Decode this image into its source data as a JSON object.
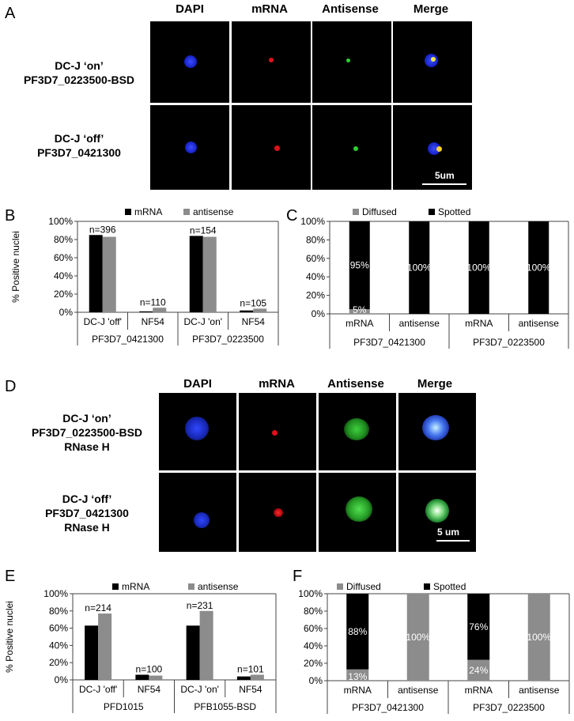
{
  "panels": {
    "A": {
      "letter": "A",
      "columns": [
        "DAPI",
        "mRNA",
        "Antisense",
        "Merge"
      ],
      "rows": [
        {
          "line1": "DC-J ‘on’",
          "line2": "PF3D7_0223500-BSD"
        },
        {
          "line1": "DC-J ‘off’",
          "line2": "PF3D7_0421300"
        }
      ],
      "scale": "5um"
    },
    "D": {
      "letter": "D",
      "columns": [
        "DAPI",
        "mRNA",
        "Antisense",
        "Merge"
      ],
      "rows": [
        {
          "line1": "DC-J ‘on’",
          "line2": "PF3D7_0223500-BSD",
          "line3": "RNase H"
        },
        {
          "line1": "DC-J ‘off’",
          "line2": "PF3D7_0421300",
          "line3": "RNase H"
        }
      ],
      "scale": "5 um"
    }
  },
  "chart_data": [
    {
      "panel": "B",
      "type": "bar",
      "ylabel": "% Positive nuclei",
      "ylim": [
        0,
        100
      ],
      "yticks": [
        "0%",
        "20%",
        "40%",
        "60%",
        "80%",
        "100%"
      ],
      "categories": [
        "DC-J 'off'",
        "NF54",
        "DC-J 'on'",
        "NF54"
      ],
      "groups": [
        "PF3D7_0421300",
        "PF3D7_0223500"
      ],
      "n_labels": [
        "n=396",
        "n=110",
        "n=154",
        "n=105"
      ],
      "series": [
        {
          "name": "mRNA",
          "color": "#000000",
          "values": [
            85,
            1,
            84,
            2
          ]
        },
        {
          "name": "antisense",
          "color": "#8c8c8c",
          "values": [
            83,
            5,
            83,
            4
          ]
        }
      ],
      "legend": "top"
    },
    {
      "panel": "C",
      "type": "bar",
      "stacked": true,
      "ylim": [
        0,
        100
      ],
      "yticks": [
        "0%",
        "20%",
        "40%",
        "60%",
        "80%",
        "100%"
      ],
      "categories": [
        "mRNA",
        "antisense",
        "mRNA",
        "antisense"
      ],
      "groups": [
        "PF3D7_0421300",
        "PF3D7_0223500"
      ],
      "series": [
        {
          "name": "Diffused",
          "color": "#8c8c8c",
          "values": [
            5,
            0,
            0,
            0
          ],
          "labels": [
            "5%",
            "",
            "",
            ""
          ]
        },
        {
          "name": "Spotted",
          "color": "#000000",
          "values": [
            95,
            100,
            100,
            100
          ],
          "labels": [
            "95%",
            "100%",
            "100%",
            "100%"
          ]
        }
      ],
      "legend": "top"
    },
    {
      "panel": "E",
      "type": "bar",
      "ylabel": "% Positive nuclei",
      "ylim": [
        0,
        100
      ],
      "yticks": [
        "0%",
        "20%",
        "40%",
        "60%",
        "80%",
        "100%"
      ],
      "categories": [
        "DC-J 'off'",
        "NF54",
        "DC-J 'on'",
        "NF54"
      ],
      "groups": [
        "PFD1015",
        "PFB1055-BSD"
      ],
      "n_labels": [
        "n=214",
        "n=100",
        "n=231",
        "n=101"
      ],
      "series": [
        {
          "name": "mRNA",
          "color": "#000000",
          "values": [
            63,
            6,
            63,
            4
          ]
        },
        {
          "name": "antisense",
          "color": "#8c8c8c",
          "values": [
            77,
            5,
            80,
            6
          ]
        }
      ],
      "legend": "top"
    },
    {
      "panel": "F",
      "type": "bar",
      "stacked": true,
      "ylim": [
        0,
        100
      ],
      "yticks": [
        "0%",
        "20%",
        "40%",
        "60%",
        "80%",
        "100%"
      ],
      "categories": [
        "mRNA",
        "antisense",
        "mRNA",
        "antisense"
      ],
      "groups": [
        "PF3D7_0421300",
        "PF3D7_0223500"
      ],
      "series": [
        {
          "name": "Diffused",
          "color": "#8c8c8c",
          "values": [
            13,
            100,
            24,
            100
          ],
          "labels": [
            "13%",
            "100%",
            "24%",
            "100%"
          ]
        },
        {
          "name": "Spotted",
          "color": "#000000",
          "values": [
            88,
            0,
            76,
            0
          ],
          "labels": [
            "88%",
            "",
            "76%",
            ""
          ]
        }
      ],
      "legend": "top"
    }
  ]
}
